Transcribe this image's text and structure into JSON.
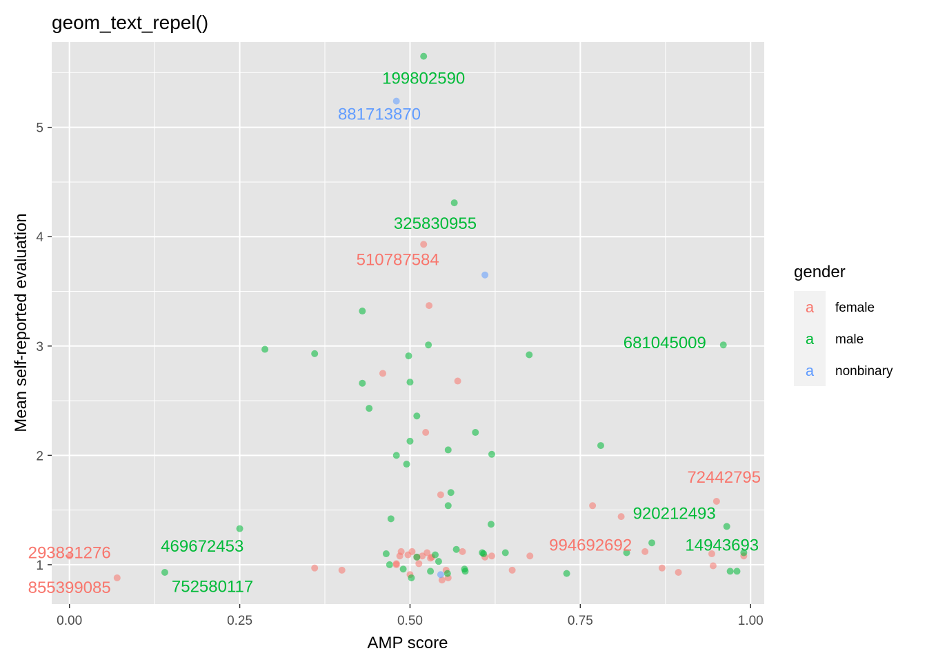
{
  "chart_data": {
    "type": "scatter",
    "title": "geom_text_repel()",
    "xlabel": "AMP score",
    "ylabel": "Mean self-reported evaluation",
    "xlim": [
      -0.026,
      1.02
    ],
    "ylim": [
      0.64,
      5.78
    ],
    "x_ticks": [
      {
        "value": 0,
        "label": "0.00"
      },
      {
        "value": 0.25,
        "label": "0.25"
      },
      {
        "value": 0.5,
        "label": "0.50"
      },
      {
        "value": 0.75,
        "label": "0.75"
      },
      {
        "value": 1.0,
        "label": "1.00"
      }
    ],
    "y_ticks": [
      {
        "value": 1,
        "label": "1"
      },
      {
        "value": 2,
        "label": "2"
      },
      {
        "value": 3,
        "label": "3"
      },
      {
        "value": 4,
        "label": "4"
      },
      {
        "value": 5,
        "label": "5"
      }
    ],
    "grid": true,
    "background": "#e5e5e5",
    "legend": {
      "title": "gender",
      "position": "right",
      "key_glyph": "a",
      "entries": [
        {
          "name": "female",
          "color": "#f8766d"
        },
        {
          "name": "male",
          "color": "#00ba38"
        },
        {
          "name": "nonbinary",
          "color": "#619cff"
        }
      ]
    },
    "series": [
      {
        "name": "female",
        "color": "#f8766d",
        "points": [
          [
            0.0,
            1.08
          ],
          [
            0.07,
            0.88
          ],
          [
            0.36,
            0.97
          ],
          [
            0.4,
            0.95
          ],
          [
            0.46,
            2.75
          ],
          [
            0.48,
            1.0
          ],
          [
            0.48,
            1.01
          ],
          [
            0.485,
            1.08
          ],
          [
            0.487,
            1.12
          ],
          [
            0.497,
            1.09
          ],
          [
            0.5,
            0.91
          ],
          [
            0.503,
            1.12
          ],
          [
            0.51,
            1.07
          ],
          [
            0.513,
            1.01
          ],
          [
            0.518,
            1.08
          ],
          [
            0.52,
            3.93
          ],
          [
            0.523,
            2.21
          ],
          [
            0.525,
            1.11
          ],
          [
            0.528,
            3.37
          ],
          [
            0.53,
            1.06
          ],
          [
            0.532,
            1.07
          ],
          [
            0.545,
            1.64
          ],
          [
            0.547,
            0.86
          ],
          [
            0.553,
            0.95
          ],
          [
            0.556,
            0.88
          ],
          [
            0.57,
            2.68
          ],
          [
            0.577,
            1.12
          ],
          [
            0.61,
            1.07
          ],
          [
            0.62,
            1.08
          ],
          [
            0.65,
            0.95
          ],
          [
            0.676,
            1.08
          ],
          [
            0.768,
            1.54
          ],
          [
            0.81,
            1.44
          ],
          [
            0.845,
            1.12
          ],
          [
            0.87,
            0.97
          ],
          [
            0.894,
            0.93
          ],
          [
            0.943,
            1.1
          ],
          [
            0.945,
            0.99
          ],
          [
            0.95,
            1.58
          ],
          [
            0.99,
            1.08
          ]
        ]
      },
      {
        "name": "male",
        "color": "#00ba38",
        "points": [
          [
            0.14,
            0.93
          ],
          [
            0.25,
            1.33
          ],
          [
            0.287,
            2.97
          ],
          [
            0.36,
            2.93
          ],
          [
            0.43,
            2.66
          ],
          [
            0.43,
            3.32
          ],
          [
            0.44,
            2.43
          ],
          [
            0.465,
            1.1
          ],
          [
            0.47,
            1.0
          ],
          [
            0.472,
            1.42
          ],
          [
            0.48,
            2.0
          ],
          [
            0.49,
            0.96
          ],
          [
            0.495,
            1.92
          ],
          [
            0.498,
            2.91
          ],
          [
            0.5,
            2.67
          ],
          [
            0.5,
            2.13
          ],
          [
            0.502,
            0.88
          ],
          [
            0.51,
            2.36
          ],
          [
            0.51,
            1.07
          ],
          [
            0.527,
            3.01
          ],
          [
            0.53,
            0.94
          ],
          [
            0.537,
            1.09
          ],
          [
            0.542,
            1.03
          ],
          [
            0.555,
            0.92
          ],
          [
            0.556,
            2.05
          ],
          [
            0.556,
            1.54
          ],
          [
            0.56,
            1.66
          ],
          [
            0.565,
            4.31
          ],
          [
            0.568,
            1.14
          ],
          [
            0.58,
            0.96
          ],
          [
            0.581,
            0.94
          ],
          [
            0.596,
            2.21
          ],
          [
            0.606,
            1.11
          ],
          [
            0.608,
            1.1
          ],
          [
            0.619,
            1.37
          ],
          [
            0.62,
            2.01
          ],
          [
            0.64,
            1.11
          ],
          [
            0.675,
            2.92
          ],
          [
            0.73,
            0.92
          ],
          [
            0.78,
            2.09
          ],
          [
            0.818,
            1.11
          ],
          [
            0.855,
            1.2
          ],
          [
            0.96,
            3.01
          ],
          [
            0.965,
            1.35
          ],
          [
            0.97,
            0.94
          ],
          [
            0.98,
            0.94
          ],
          [
            0.99,
            1.11
          ],
          [
            0.52,
            5.65
          ]
        ]
      },
      {
        "name": "nonbinary",
        "color": "#619cff",
        "points": [
          [
            0.48,
            5.24
          ],
          [
            0.61,
            3.65
          ],
          [
            0.545,
            0.91
          ]
        ]
      }
    ],
    "labels": [
      {
        "text": "199802590",
        "series": "male",
        "x": 0.52,
        "y": 5.45
      },
      {
        "text": "881713870",
        "series": "nonbinary",
        "x": 0.455,
        "y": 5.12
      },
      {
        "text": "325830955",
        "series": "male",
        "x": 0.537,
        "y": 4.12
      },
      {
        "text": "510787584",
        "series": "female",
        "x": 0.482,
        "y": 3.79
      },
      {
        "text": "681045009",
        "series": "male",
        "x": 0.874,
        "y": 3.03
      },
      {
        "text": "72442795",
        "series": "female",
        "x": 0.961,
        "y": 1.8
      },
      {
        "text": "920212493",
        "series": "male",
        "x": 0.888,
        "y": 1.47
      },
      {
        "text": "293831276",
        "series": "female",
        "x": 0.0,
        "y": 1.11
      },
      {
        "text": "469672453",
        "series": "male",
        "x": 0.195,
        "y": 1.17
      },
      {
        "text": "994692692",
        "series": "female",
        "x": 0.765,
        "y": 1.18
      },
      {
        "text": "14943693",
        "series": "male",
        "x": 0.958,
        "y": 1.18
      },
      {
        "text": "855399085",
        "series": "female",
        "x": 0.0,
        "y": 0.79
      },
      {
        "text": "752580117",
        "series": "male",
        "x": 0.21,
        "y": 0.8
      }
    ]
  }
}
